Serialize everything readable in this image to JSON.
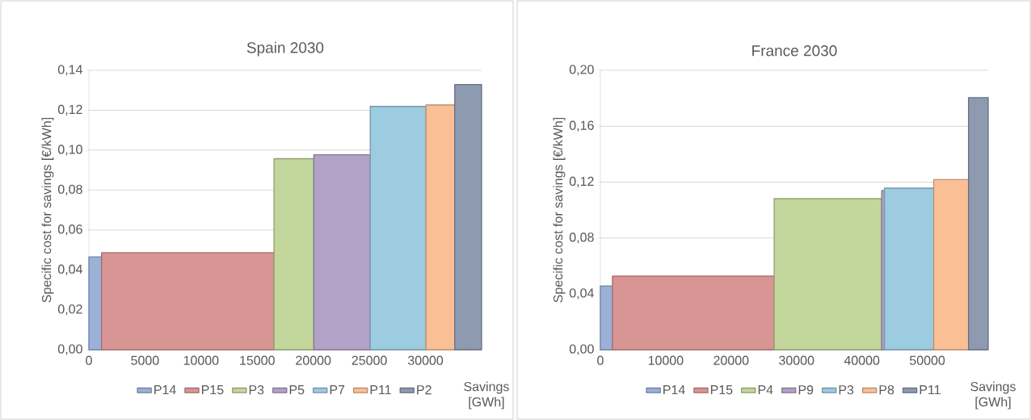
{
  "chart_data": [
    {
      "type": "area",
      "title": "Spain 2030",
      "xlabel": "Savings [GWh]",
      "ylabel": "Specific cost for savings [€/kWh]",
      "grid": "y",
      "legend": "bottom",
      "xlim": [
        0,
        35000
      ],
      "ylim": [
        0,
        0.14
      ],
      "xticks": [
        0,
        5000,
        10000,
        15000,
        20000,
        25000,
        30000
      ],
      "yticks": [
        {
          "value": 0,
          "label": "0,00"
        },
        {
          "value": 0.02,
          "label": "0,02"
        },
        {
          "value": 0.04,
          "label": "0,04"
        },
        {
          "value": 0.06,
          "label": "0,06"
        },
        {
          "value": 0.08,
          "label": "0,08"
        },
        {
          "value": 0.1,
          "label": "0,10"
        },
        {
          "value": 0.12,
          "label": "0,12"
        },
        {
          "value": 0.14,
          "label": "0,14"
        }
      ],
      "series": [
        {
          "name": "P14",
          "color": "#9bb1d8",
          "x": [
            0,
            1130
          ],
          "values": [
            0.0465,
            0.0465
          ]
        },
        {
          "name": "P15",
          "color": "#d99594",
          "x": [
            1130,
            16500
          ],
          "values": [
            0.0486,
            0.0486
          ]
        },
        {
          "name": "P3",
          "color": "#c3d69b",
          "x": [
            16500,
            20050
          ],
          "values": [
            0.0957,
            0.0957
          ]
        },
        {
          "name": "P5",
          "color": "#b3a2c7",
          "x": [
            20050,
            25080
          ],
          "values": [
            0.0977,
            0.0977
          ]
        },
        {
          "name": "P7",
          "color": "#9dcbe0",
          "x": [
            25080,
            30050
          ],
          "values": [
            0.1219,
            0.1219
          ]
        },
        {
          "name": "P11",
          "color": "#fbbf96",
          "x": [
            30050,
            32610
          ],
          "values": [
            0.1226,
            0.1226
          ]
        },
        {
          "name": "P2",
          "color": "#8e9ab0",
          "x": [
            32610,
            35000
          ],
          "values": [
            0.1329,
            0.1329
          ]
        }
      ]
    },
    {
      "type": "area",
      "title": "France 2030",
      "xlabel": "Savings [GWh]",
      "ylabel": "Specific cost for savings [€/kWh]",
      "grid": "y",
      "legend": "bottom",
      "xlim": [
        0,
        59320
      ],
      "ylim": [
        0,
        0.2
      ],
      "xticks": [
        0,
        10000,
        20000,
        30000,
        40000,
        50000
      ],
      "yticks": [
        {
          "value": 0,
          "label": "0,00"
        },
        {
          "value": 0.04,
          "label": "0,04"
        },
        {
          "value": 0.08,
          "label": "0,08"
        },
        {
          "value": 0.12,
          "label": "0,12"
        },
        {
          "value": 0.16,
          "label": "0,16"
        },
        {
          "value": 0.2,
          "label": "0,20"
        }
      ],
      "series": [
        {
          "name": "P14",
          "color": "#9bb1d8",
          "x": [
            0,
            1850
          ],
          "values": [
            0.0456,
            0.0456
          ]
        },
        {
          "name": "P15",
          "color": "#d99594",
          "x": [
            1850,
            26590
          ],
          "values": [
            0.0527,
            0.0527
          ]
        },
        {
          "name": "P4",
          "color": "#c3d69b",
          "x": [
            26590,
            43030
          ],
          "values": [
            0.1081,
            0.1081
          ]
        },
        {
          "name": "P9",
          "color": "#b3a2c7",
          "x": [
            43030,
            43450
          ],
          "values": [
            0.1139,
            0.1139
          ]
        },
        {
          "name": "P3",
          "color": "#9dcbe0",
          "x": [
            43450,
            50990
          ],
          "values": [
            0.1156,
            0.1156
          ]
        },
        {
          "name": "P8",
          "color": "#fbbf96",
          "x": [
            50990,
            56310
          ],
          "values": [
            0.1217,
            0.1217
          ]
        },
        {
          "name": "P11",
          "color": "#8e9ab0",
          "x": [
            56310,
            59320
          ],
          "values": [
            0.1804,
            0.1804
          ]
        }
      ]
    }
  ]
}
